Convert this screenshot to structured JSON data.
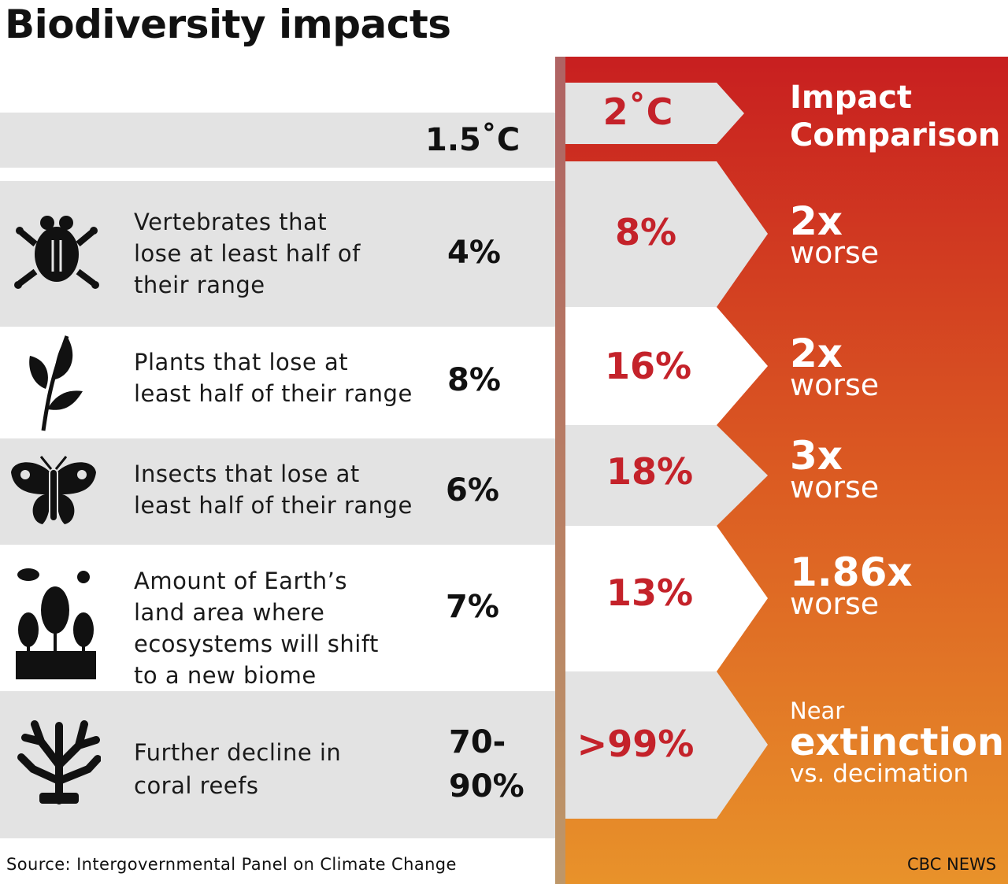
{
  "title": "Biodiversity impacts",
  "header": {
    "col_15": "1.5˚C",
    "col_2": "2˚C",
    "comparison": [
      "Impact",
      "Comparison"
    ]
  },
  "rows": [
    {
      "icon": "frog-icon",
      "label": [
        "Vertebrates that",
        "lose at least half of",
        "their range"
      ],
      "v15": "4%",
      "v2": "8%",
      "cmp_big": "2x",
      "cmp_small": "worse"
    },
    {
      "icon": "plant-icon",
      "label": [
        "Plants that lose at",
        "least half of their range"
      ],
      "v15": "8%",
      "v2": "16%",
      "cmp_big": "2x",
      "cmp_small": "worse"
    },
    {
      "icon": "butterfly-icon",
      "label": [
        "Insects that lose at",
        "least half of their range"
      ],
      "v15": "6%",
      "v2": "18%",
      "cmp_big": "3x",
      "cmp_small": "worse"
    },
    {
      "icon": "ecosystem-icon",
      "label": [
        "Amount of Earth’s",
        "land area where",
        "ecosystems will shift",
        "to a new biome"
      ],
      "v15": "7%",
      "v2": "13%",
      "cmp_big": "1.86x",
      "cmp_small": "worse"
    },
    {
      "icon": "coral-icon",
      "label": [
        "Further decline in",
        "coral reefs"
      ],
      "v15": [
        "70-",
        "90%"
      ],
      "v2": ">99%",
      "cmp_pre": "Near",
      "cmp_big": "extinction",
      "cmp_small": "vs. decimation"
    }
  ],
  "source": "Source: Intergovernmental Panel on Climate Change",
  "brand": "CBC NEWS",
  "colors": {
    "red": "#c4222a",
    "gradient_top": "#c81f20",
    "gradient_bottom": "#e8922a",
    "grey": "#e3e3e3"
  }
}
